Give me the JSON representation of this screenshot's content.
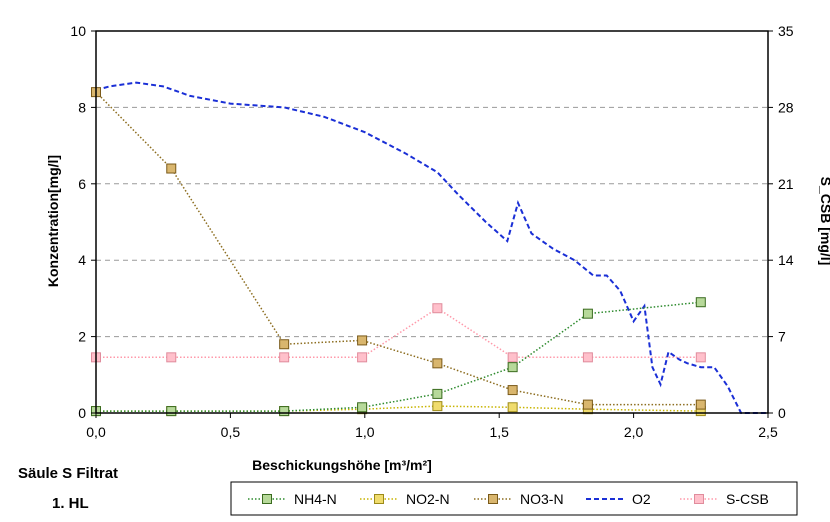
{
  "caption": {
    "line1": "Säule S Filtrat",
    "line2": "1. HL"
  },
  "chart_data": {
    "type": "line",
    "xlabel": "Beschickungshöhe [m³/m²]",
    "ylabel": "Konzentration[mg/l]",
    "y2label": "S_CSB [mg/l]",
    "xlim": [
      0,
      2.5
    ],
    "ylim": [
      0,
      10
    ],
    "y2lim": [
      0,
      35
    ],
    "x_ticks": [
      "0,0",
      "0,5",
      "1,0",
      "1,5",
      "2,0",
      "2,5"
    ],
    "y_ticks": [
      "0",
      "2",
      "4",
      "6",
      "8",
      "10"
    ],
    "y2_ticks": [
      "0",
      "7",
      "14",
      "21",
      "28",
      "35"
    ],
    "grid": "horizontal dashed",
    "legend_position": "bottom",
    "series": [
      {
        "name": "NH4-N",
        "axis": "left",
        "color": "#2e8b2e",
        "marker_fill": "#b7d99a",
        "marker_stroke": "#3a6b1f",
        "line_style": "dotted",
        "points": [
          [
            0.0,
            0.05
          ],
          [
            0.28,
            0.05
          ],
          [
            0.7,
            0.05
          ],
          [
            0.99,
            0.15
          ],
          [
            1.27,
            0.5
          ],
          [
            1.55,
            1.2
          ],
          [
            1.83,
            2.6
          ],
          [
            2.25,
            2.9
          ]
        ]
      },
      {
        "name": "NO2-N",
        "axis": "left",
        "color": "#c8b400",
        "marker_fill": "#f0dc6e",
        "marker_stroke": "#9c8a1a",
        "line_style": "dotted",
        "points": [
          [
            0.0,
            0.05
          ],
          [
            0.28,
            0.05
          ],
          [
            0.7,
            0.05
          ],
          [
            0.99,
            0.1
          ],
          [
            1.27,
            0.18
          ],
          [
            1.55,
            0.15
          ],
          [
            1.83,
            0.1
          ],
          [
            2.25,
            0.05
          ]
        ]
      },
      {
        "name": "NO3-N",
        "axis": "left",
        "color": "#8c6d1f",
        "marker_fill": "#d9b66e",
        "marker_stroke": "#7a5a1a",
        "line_style": "dotted",
        "points": [
          [
            0.0,
            8.4
          ],
          [
            0.28,
            6.4
          ],
          [
            0.7,
            1.8
          ],
          [
            0.99,
            1.9
          ],
          [
            1.27,
            1.3
          ],
          [
            1.55,
            0.6
          ],
          [
            1.83,
            0.22
          ],
          [
            2.25,
            0.22
          ]
        ]
      },
      {
        "name": "O2",
        "axis": "left",
        "color": "#1a2fd6",
        "line_style": "dashed",
        "marker": "none",
        "points": [
          [
            0.0,
            8.45
          ],
          [
            0.05,
            8.55
          ],
          [
            0.15,
            8.65
          ],
          [
            0.25,
            8.55
          ],
          [
            0.35,
            8.3
          ],
          [
            0.5,
            8.1
          ],
          [
            0.7,
            8.0
          ],
          [
            0.85,
            7.75
          ],
          [
            1.0,
            7.35
          ],
          [
            1.15,
            6.8
          ],
          [
            1.27,
            6.3
          ],
          [
            1.35,
            5.7
          ],
          [
            1.45,
            5.0
          ],
          [
            1.53,
            4.5
          ],
          [
            1.57,
            5.5
          ],
          [
            1.62,
            4.7
          ],
          [
            1.7,
            4.3
          ],
          [
            1.78,
            4.0
          ],
          [
            1.85,
            3.6
          ],
          [
            1.9,
            3.6
          ],
          [
            1.95,
            3.2
          ],
          [
            2.0,
            2.4
          ],
          [
            2.04,
            2.8
          ],
          [
            2.07,
            1.2
          ],
          [
            2.1,
            0.75
          ],
          [
            2.13,
            1.6
          ],
          [
            2.17,
            1.4
          ],
          [
            2.2,
            1.3
          ],
          [
            2.25,
            1.2
          ],
          [
            2.3,
            1.2
          ],
          [
            2.35,
            0.7
          ],
          [
            2.4,
            0.0
          ],
          [
            2.5,
            0.0
          ]
        ]
      },
      {
        "name": "S-CSB",
        "axis": "right",
        "color": "#ff99aa",
        "marker_fill": "#ffc0cb",
        "marker_stroke": "#e08c9c",
        "line_style": "dotted",
        "points": [
          [
            0.0,
            5.1
          ],
          [
            0.28,
            5.1
          ],
          [
            0.7,
            5.1
          ],
          [
            0.99,
            5.1
          ],
          [
            1.27,
            9.6
          ],
          [
            1.55,
            5.1
          ],
          [
            1.83,
            5.1
          ],
          [
            2.25,
            5.1
          ]
        ]
      }
    ]
  }
}
